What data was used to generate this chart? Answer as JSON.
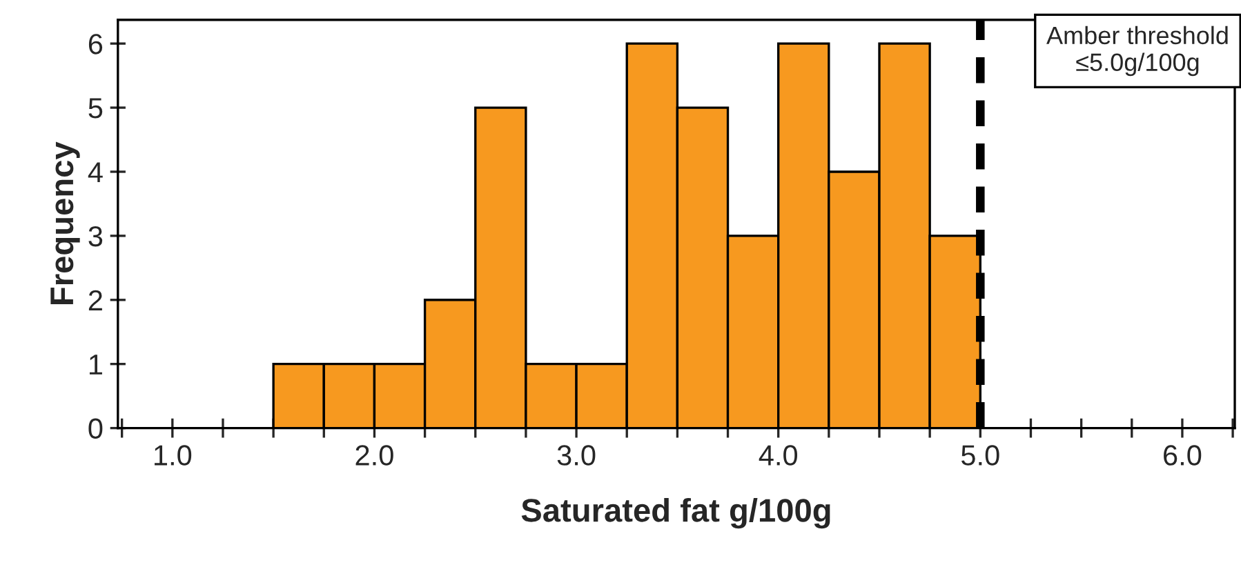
{
  "chart_data": {
    "type": "histogram",
    "xlabel": "Saturated fat g/100g",
    "ylabel": "Frequency",
    "bins": [
      1.5,
      1.75,
      2.0,
      2.25,
      2.5,
      2.75,
      3.0,
      3.25,
      3.5,
      3.75,
      4.0,
      4.25,
      4.5,
      4.75,
      5.0
    ],
    "values": [
      1,
      1,
      1,
      2,
      5,
      1,
      1,
      6,
      5,
      3,
      6,
      4,
      6,
      3
    ],
    "color": "#f7991f",
    "xlim": [
      0.73,
      6.26
    ],
    "ylim": [
      0,
      6.37
    ],
    "xticks": [
      {
        "value": 1,
        "label": "1.0"
      },
      {
        "value": 2,
        "label": "2.0"
      },
      {
        "value": 3,
        "label": "3.0"
      },
      {
        "value": 4,
        "label": "4.0"
      },
      {
        "value": 5,
        "label": "5.0"
      },
      {
        "value": 6,
        "label": "6.0"
      }
    ],
    "yticks": [
      0,
      1,
      2,
      3,
      4,
      5,
      6
    ],
    "ref_lines": [
      {
        "axis": "x",
        "value": 5.0,
        "label": "Amber threshold\n≤5.0g/100g",
        "color": "#000000",
        "line_style": "dashed"
      }
    ],
    "grid": false
  }
}
